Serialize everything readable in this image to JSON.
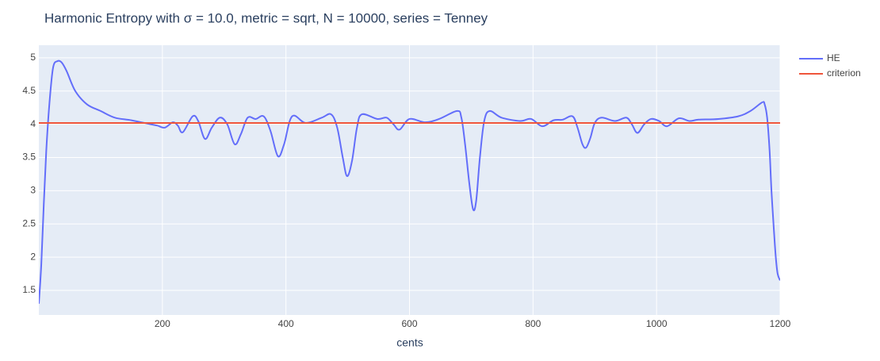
{
  "chart_data": {
    "type": "line",
    "title": "Harmonic Entropy with σ = 10.0, metric = sqrt, N = 10000, series = Tenney",
    "x_label": "cents",
    "xlim": [
      0,
      1200
    ],
    "ylim": [
      1.13,
      5.19
    ],
    "xticks": [
      200,
      400,
      600,
      800,
      1000,
      1200
    ],
    "yticks": [
      1.5,
      2,
      2.5,
      3,
      3.5,
      4,
      4.5,
      5
    ],
    "grid": true,
    "legend": "right",
    "series": [
      {
        "name": "HE",
        "color": "#636efa",
        "x": [
          0,
          4,
          8,
          12,
          17,
          23,
          30,
          37,
          45,
          59,
          78,
          100,
          123,
          150,
          181,
          192,
          204,
          217,
          225,
          233,
          249,
          258,
          269,
          280,
          293,
          305,
          317,
          327,
          338,
          351,
          364,
          375,
          387,
          397,
          410,
          432,
          458,
          473,
          483,
          492,
          499,
          507,
          515,
          523,
          548,
          563,
          574,
          584,
          600,
          625,
          648,
          677,
          684,
          690,
          697,
          703,
          708,
          714,
          721,
          730,
          749,
          779,
          797,
          815,
          833,
          848,
          864,
          872,
          880,
          886,
          893,
          900,
          911,
          933,
          951,
          960,
          969,
          980,
          991,
          1004,
          1017,
          1036,
          1053,
          1068,
          1100,
          1132,
          1152,
          1171,
          1175,
          1179,
          1183,
          1186,
          1190,
          1193,
          1196,
          1200
        ],
        "values": [
          1.3,
          1.9,
          2.8,
          3.6,
          4.3,
          4.85,
          4.95,
          4.93,
          4.8,
          4.5,
          4.3,
          4.2,
          4.1,
          4.06,
          4.0,
          3.98,
          3.95,
          4.03,
          3.98,
          3.88,
          4.12,
          4.05,
          3.78,
          3.95,
          4.1,
          4.0,
          3.7,
          3.85,
          4.1,
          4.08,
          4.12,
          3.9,
          3.52,
          3.7,
          4.12,
          4.02,
          4.1,
          4.15,
          3.95,
          3.5,
          3.22,
          3.45,
          3.95,
          4.15,
          4.08,
          4.1,
          4.0,
          3.92,
          4.08,
          4.03,
          4.08,
          4.2,
          4.1,
          3.7,
          3.1,
          2.72,
          2.85,
          3.5,
          4.05,
          4.2,
          4.1,
          4.05,
          4.08,
          3.97,
          4.06,
          4.07,
          4.12,
          3.95,
          3.7,
          3.65,
          3.8,
          4.02,
          4.1,
          4.05,
          4.1,
          4.0,
          3.87,
          4.0,
          4.08,
          4.05,
          3.97,
          4.09,
          4.05,
          4.07,
          4.08,
          4.12,
          4.2,
          4.33,
          4.3,
          4.1,
          3.6,
          3.0,
          2.4,
          2.0,
          1.75,
          1.65
        ]
      },
      {
        "name": "criterion",
        "color": "#EF553B",
        "x": [
          0,
          1200
        ],
        "values": [
          4.02,
          4.02
        ]
      }
    ]
  }
}
